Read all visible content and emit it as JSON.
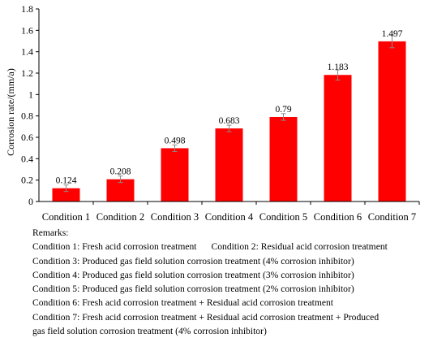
{
  "chart_data": {
    "type": "bar",
    "categories": [
      "Condition 1",
      "Condition 2",
      "Condition 3",
      "Condition 4",
      "Condition 5",
      "Condition 6",
      "Condition 7"
    ],
    "values": [
      0.124,
      0.208,
      0.498,
      0.683,
      0.79,
      1.183,
      1.497
    ],
    "value_labels": [
      "0.124",
      "0.208",
      "0.498",
      "0.683",
      "0.79",
      "1.183",
      "1.497"
    ],
    "ylabel": "Corrosion rate/(mm/a)",
    "xlabel": "",
    "ylim": [
      0,
      1.8
    ],
    "yticks": [
      "0",
      "0.2",
      "0.4",
      "0.6",
      "0.8",
      "1",
      "1.2",
      "1.4",
      "1.6",
      "1.8"
    ],
    "grid": false,
    "error_bars": true,
    "bar_color": "#ff0000"
  },
  "remarks": {
    "title": "Remarks:",
    "line1a": "Condition 1: Fresh acid corrosion treatment",
    "line1b": "Condition 2: Residual acid corrosion treatment",
    "line2": "Condition 3: Produced  gas  field  solution corrosion treatment (4% corrosion inhibitor)",
    "line3": "Condition 4: Produced  gas  field  solution corrosion treatment (3% corrosion inhibitor)",
    "line4": "Condition 5: Produced  gas  field  solution corrosion treatment (2% corrosion inhibitor)",
    "line5": "Condition 6: Fresh acid corrosion treatment + Residual acid corrosion treatment",
    "line6": "Condition 7: Fresh acid corrosion treatment + Residual acid corrosion treatment + Produced",
    "line7": "gas  field  solution corrosion treatment (4% corrosion inhibitor)"
  }
}
